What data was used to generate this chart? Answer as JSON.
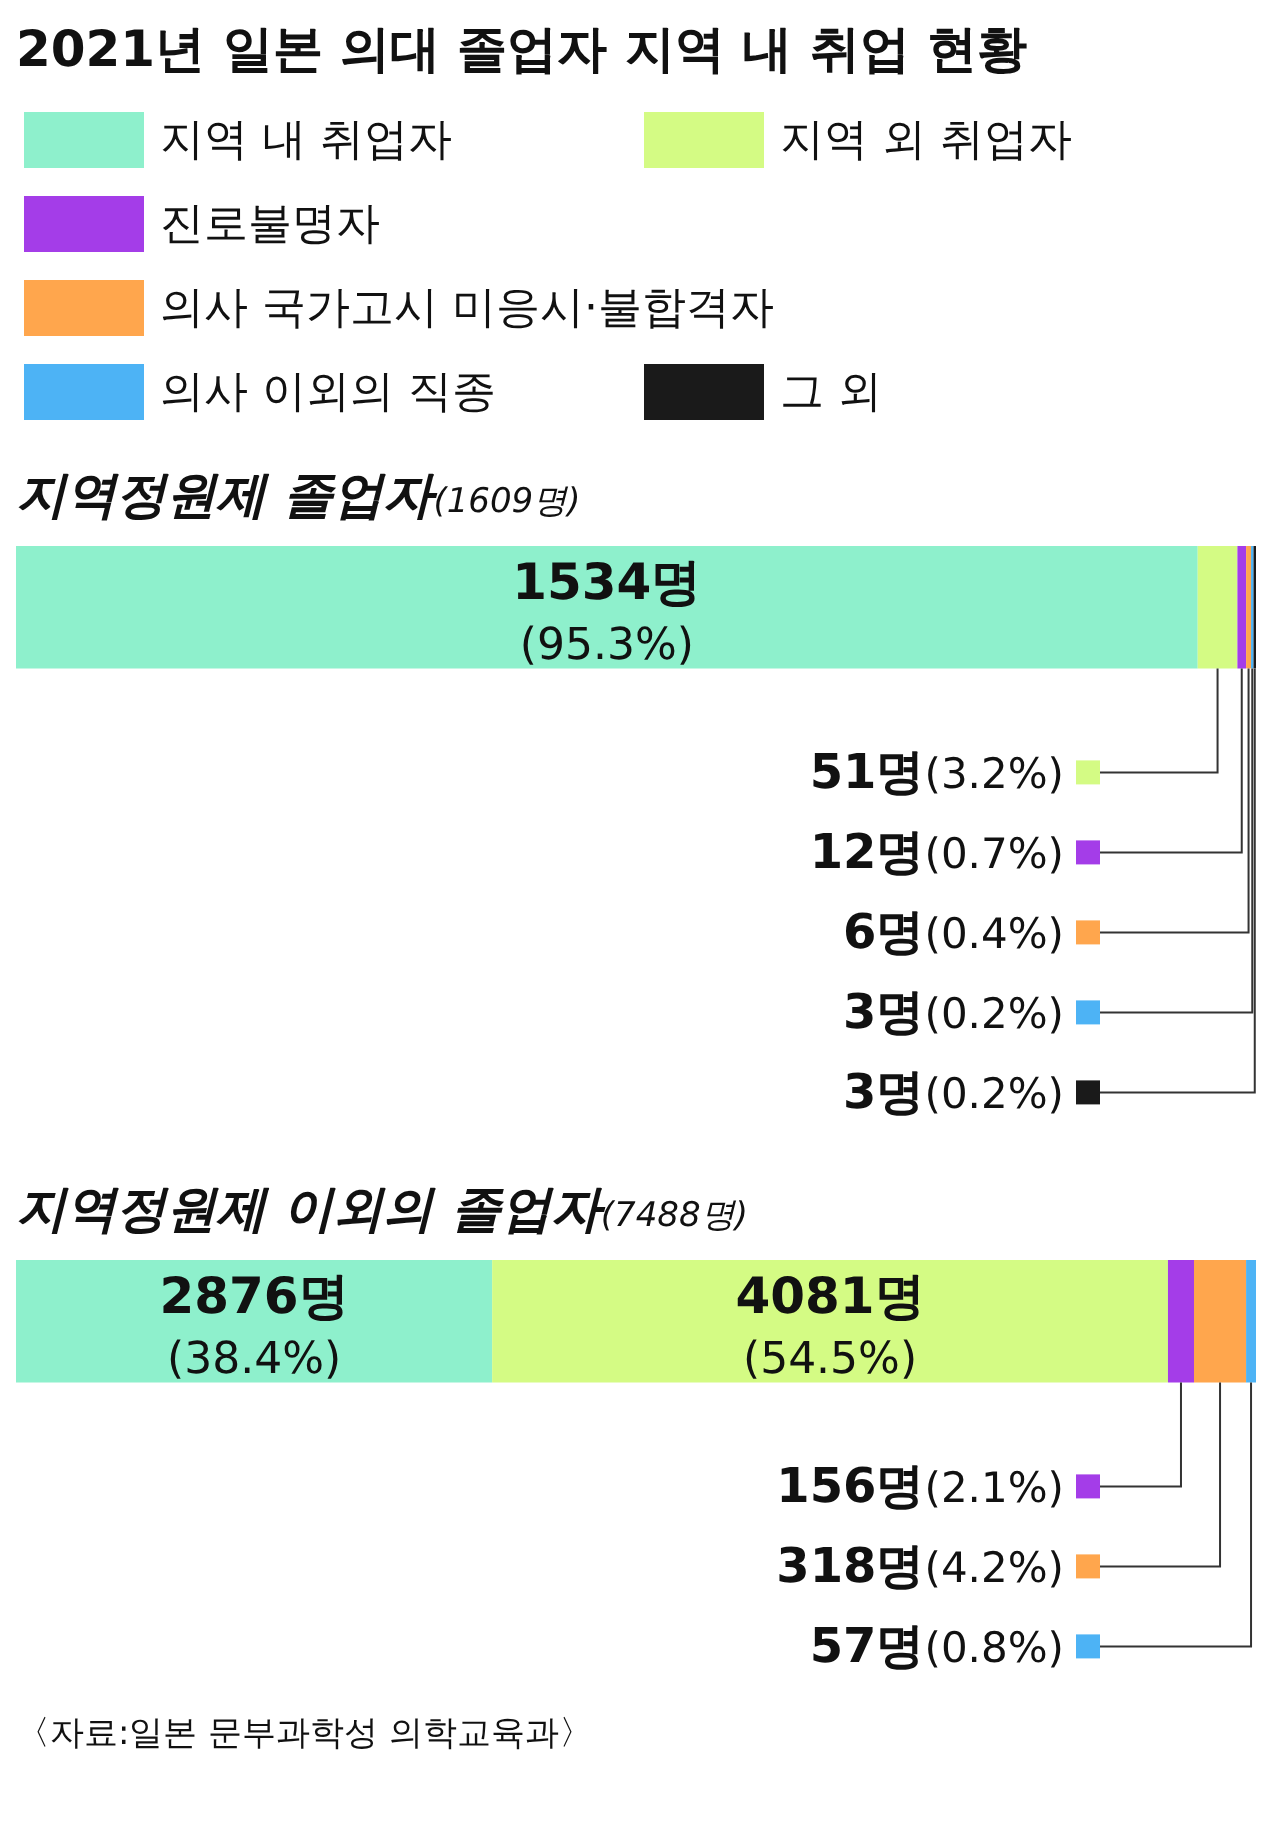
{
  "chart_data": {
    "type": "bar",
    "title": "2021년 일본 의대 졸업자 지역 내 취업 현황",
    "categories": [
      "지역정원제 졸업자(1609명)",
      "지역정원제 이외의 졸업자(7488명)"
    ],
    "orientation": "horizontal",
    "stacked": true,
    "legend": "top",
    "series": [
      {
        "name": "지역 내 취업자",
        "color": "#8ef0cc",
        "values": [
          95.3,
          38.4
        ],
        "value_labels": [
          "1534명(95.3%)",
          "2876명(38.4%)"
        ]
      },
      {
        "name": "지역 외 취업자",
        "color": "#d4fb84",
        "values": [
          3.2,
          54.5
        ],
        "value_labels": [
          "51명(3.2%)",
          "4081명(54.5%)"
        ]
      },
      {
        "name": "진로불명자",
        "color": "#a43de8",
        "values": [
          0.7,
          2.1
        ],
        "value_labels": [
          "12명(0.7%)",
          "156명(2.1%)"
        ]
      },
      {
        "name": "의사 국가고시 미응시·불합격자",
        "color": "#ffa64d",
        "values": [
          0.4,
          4.2
        ],
        "value_labels": [
          "6명(0.4%)",
          "318명(4.2%)"
        ]
      },
      {
        "name": "의사 이외의 직종",
        "color": "#4db3f5",
        "values": [
          0.2,
          0.8
        ],
        "value_labels": [
          "3명(0.2%)",
          "57명(0.8%)"
        ]
      },
      {
        "name": "그 외",
        "color": "#1a1a1a",
        "values": [
          0.2,
          null
        ],
        "value_labels": [
          "3명(0.2%)",
          null
        ]
      }
    ],
    "annotations": [
      "〈자료:일본 문부과학성 의학교육과〉"
    ]
  }
}
